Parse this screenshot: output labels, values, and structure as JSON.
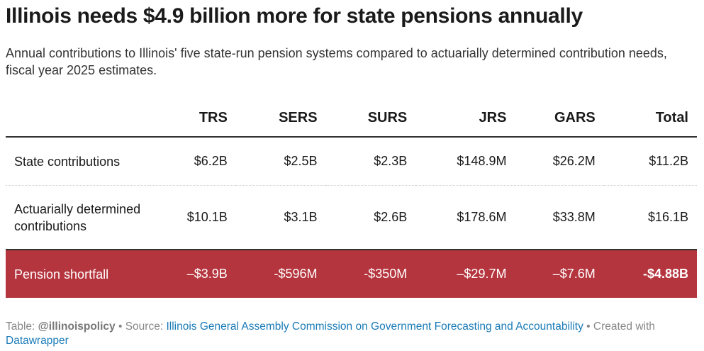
{
  "title": "Illinois needs $4.9 billion more for state pensions annually",
  "subtitle": "Annual contributions to Illinois' five state-run pension systems compared to actuarially determined contribution needs, fiscal year 2025 estimates.",
  "chart_data": {
    "type": "table",
    "columns": [
      "",
      "TRS",
      "SERS",
      "SURS",
      "JRS",
      "GARS",
      "Total"
    ],
    "rows": [
      {
        "label": "State contributions",
        "values": [
          "$6.2B",
          "$2.5B",
          "$2.3B",
          "$148.9M",
          "$26.2M",
          "$11.2B"
        ]
      },
      {
        "label": "Actuarially determined contributions",
        "values": [
          "$10.1B",
          "$3.1B",
          "$2.6B",
          "$178.6M",
          "$33.8M",
          "$16.1B"
        ]
      },
      {
        "label": "Pension shortfall",
        "values": [
          "–$3.9B",
          "-$596M",
          "-$350M",
          "–$29.7M",
          "–$7.6M",
          "-$4.88B"
        ]
      }
    ],
    "highlight_color": "#b5353e"
  },
  "footer": {
    "table_prefix": "Table: ",
    "table_author": "@illinoispolicy",
    "sep1": " • Source: ",
    "source": "Illinois General Assembly Commission on Government Forecasting and Accountability",
    "sep2": " • Created with ",
    "tool": "Datawrapper"
  }
}
